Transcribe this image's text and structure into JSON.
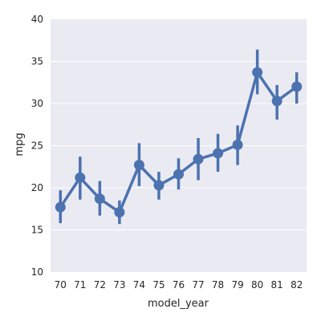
{
  "chart_data": {
    "type": "line",
    "xlabel": "model_year",
    "ylabel": "mpg",
    "ylim": [
      10,
      40
    ],
    "yticks": [
      10,
      15,
      20,
      25,
      30,
      35,
      40
    ],
    "categories": [
      "70",
      "71",
      "72",
      "73",
      "74",
      "75",
      "76",
      "77",
      "78",
      "79",
      "80",
      "81",
      "82"
    ],
    "series": [
      {
        "values": [
          17.7,
          21.2,
          18.7,
          17.1,
          22.7,
          20.3,
          21.6,
          23.4,
          24.1,
          25.1,
          33.7,
          30.3,
          32.0
        ],
        "ci_low": [
          15.8,
          18.6,
          16.7,
          15.7,
          20.2,
          18.6,
          19.8,
          20.9,
          21.9,
          22.7,
          31.1,
          28.1,
          30.0
        ],
        "ci_high": [
          19.7,
          23.7,
          20.8,
          18.5,
          25.3,
          21.9,
          23.5,
          25.9,
          26.4,
          27.4,
          36.4,
          32.2,
          33.7
        ]
      }
    ],
    "grid": true,
    "colors": {
      "series": "#4c72b0",
      "background": "#eaeaf2",
      "grid": "#ffffff",
      "text": "#262626"
    }
  }
}
